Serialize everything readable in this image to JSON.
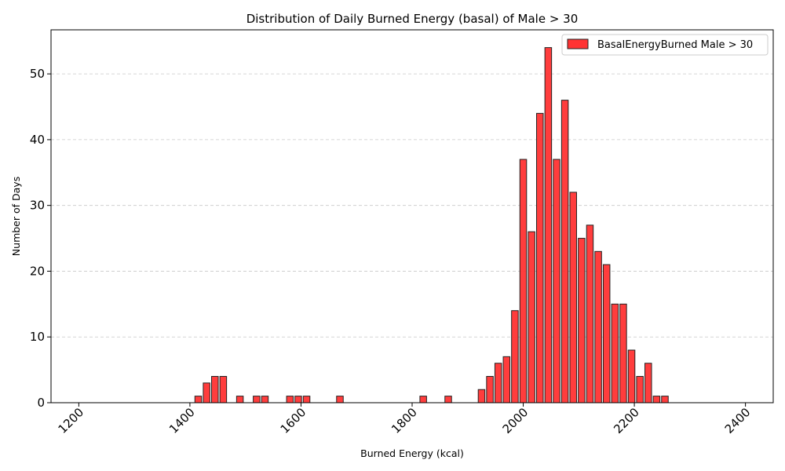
{
  "chart_data": {
    "type": "bar",
    "title": "Distribution of Daily Burned Energy (basal) of Male > 30",
    "xlabel": "Burned Energy (kcal)",
    "ylabel": "Number of Days",
    "xlim": [
      1150,
      2450
    ],
    "ylim": [
      0,
      56.7
    ],
    "xticks": [
      1200,
      1400,
      1600,
      1800,
      2000,
      2200,
      2400
    ],
    "yticks": [
      0,
      10,
      20,
      30,
      40,
      50
    ],
    "bin_width": 15,
    "grid": "y-dashed",
    "legend_position": "top-right",
    "colors": {
      "bar_fill": "#ff3333",
      "bar_edge": "#222222",
      "grid": "#c8c8c8"
    },
    "series": [
      {
        "name": "BasalEnergyBurned Male > 30",
        "x": [
          1205,
          1220,
          1235,
          1250,
          1265,
          1280,
          1295,
          1310,
          1325,
          1340,
          1355,
          1370,
          1385,
          1400,
          1415,
          1430,
          1445,
          1460,
          1475,
          1490,
          1505,
          1520,
          1535,
          1550,
          1565,
          1580,
          1595,
          1610,
          1625,
          1640,
          1655,
          1670,
          1685,
          1700,
          1715,
          1730,
          1745,
          1760,
          1775,
          1790,
          1805,
          1820,
          1835,
          1850,
          1865,
          1880,
          1895,
          1910,
          1925,
          1940,
          1955,
          1970,
          1985,
          2000,
          2015,
          2030,
          2045,
          2060,
          2075,
          2090,
          2105,
          2120,
          2135,
          2150,
          2165,
          2180,
          2195,
          2210,
          2225,
          2240,
          2255,
          2270,
          2285,
          2300,
          2315,
          2330,
          2345,
          2360,
          2375,
          2390
        ],
        "values": [
          0,
          0,
          0,
          0,
          0,
          0,
          0,
          0,
          0,
          0,
          0,
          0,
          0,
          0,
          1,
          3,
          4,
          4,
          0,
          1,
          0,
          1,
          1,
          0,
          0,
          1,
          1,
          1,
          0,
          0,
          0,
          1,
          0,
          0,
          0,
          0,
          0,
          0,
          0,
          0,
          0,
          1,
          0,
          0,
          1,
          0,
          0,
          0,
          2,
          4,
          6,
          7,
          14,
          37,
          26,
          44,
          54,
          37,
          46,
          32,
          25,
          27,
          23,
          21,
          15,
          15,
          8,
          4,
          6,
          1,
          1,
          0,
          0,
          0,
          0,
          0,
          0,
          0,
          0,
          0
        ]
      }
    ]
  }
}
